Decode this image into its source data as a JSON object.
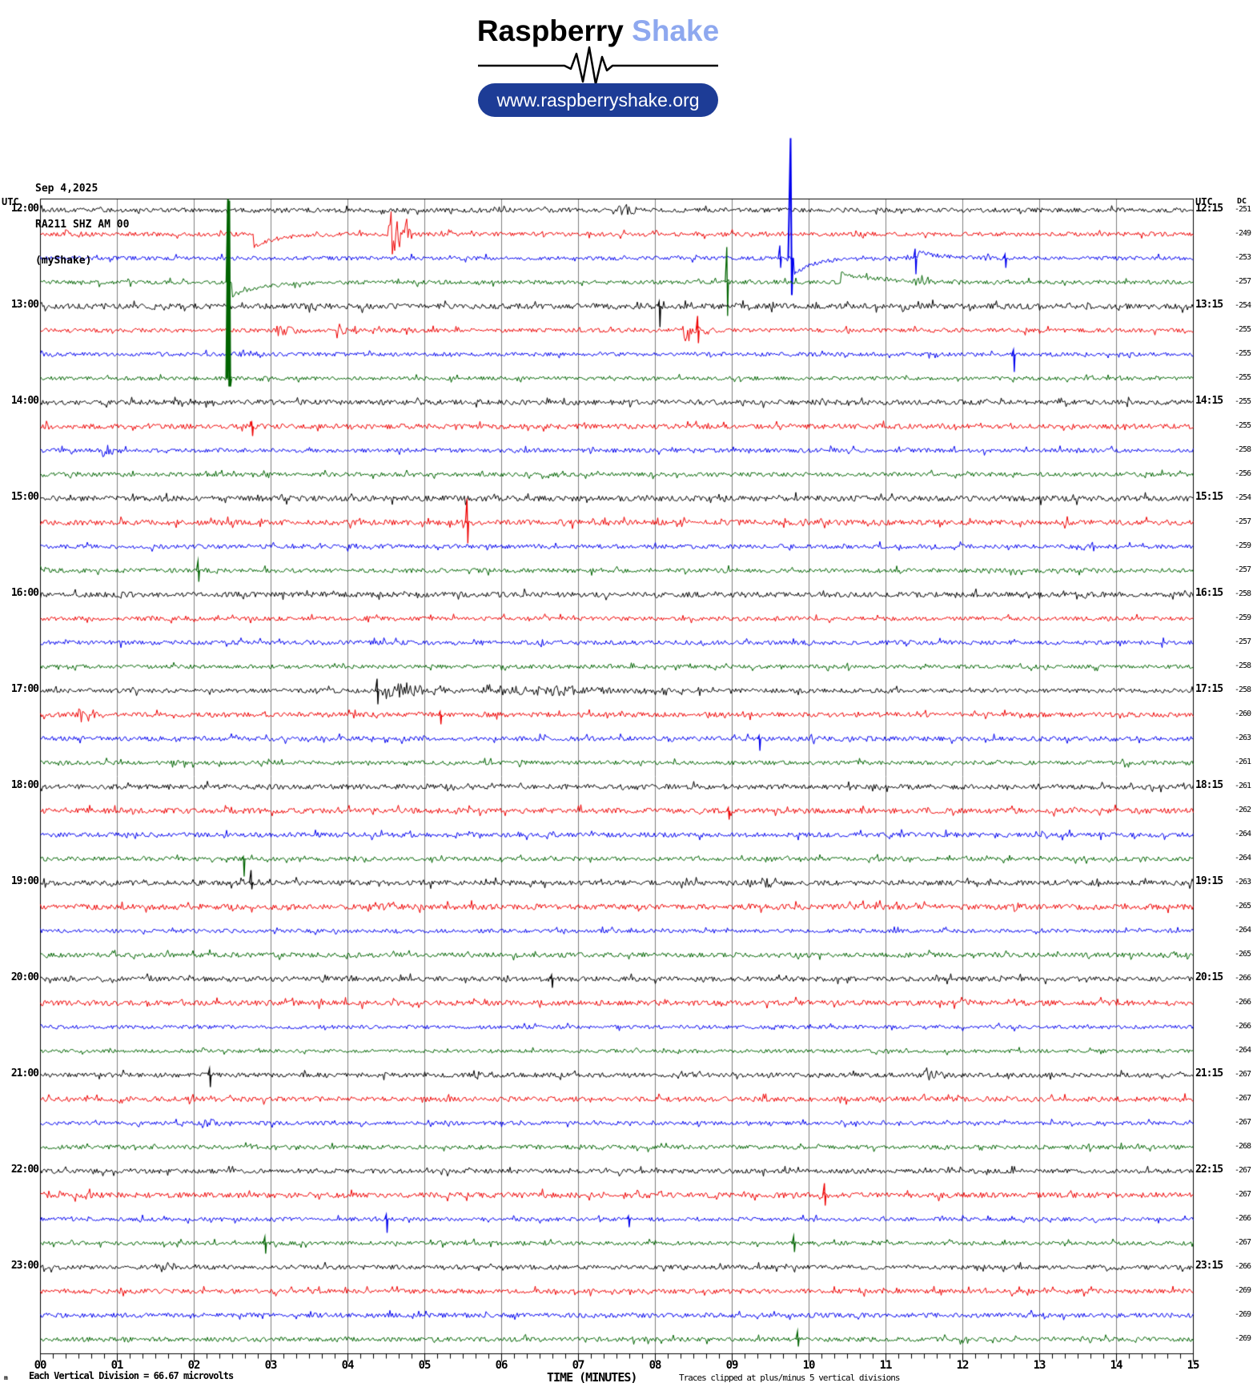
{
  "header": {
    "logo_black": "Raspberry",
    "logo_blue": "Shake",
    "url": "www.raspberryshake.org"
  },
  "station": {
    "date": "Sep 4,2025",
    "id": "RA211 SHZ AM 00",
    "network": "(myShake)"
  },
  "axis": {
    "utc_left": "UTC",
    "utc_right": "UTC",
    "dc_header": "DC",
    "x_title": "TIME (MINUTES)",
    "clip_note": "Traces clipped at plus/minus 5 vertical divisions",
    "division_note": "Each Vertical Division =   66.67 microvolts",
    "corner_mark": "m",
    "x_ticks": [
      "00",
      "01",
      "02",
      "03",
      "04",
      "05",
      "06",
      "07",
      "08",
      "09",
      "10",
      "11",
      "12",
      "13",
      "14",
      "15"
    ]
  },
  "chart_data": {
    "type": "line",
    "subtype": "helicorder-seismogram",
    "x_range_minutes": [
      0,
      15
    ],
    "minutes_per_row": 15,
    "minor_tick_seconds": 10,
    "grid": true,
    "grid_color": "#7f7f7f",
    "colors": {
      "black": "#000000",
      "red": "#ee0000",
      "blue": "#0000ee",
      "green": "#006400"
    },
    "rows": [
      {
        "color": "black",
        "dc": -251,
        "left": "12:00",
        "right": "12:15"
      },
      {
        "color": "red",
        "dc": -249
      },
      {
        "color": "blue",
        "dc": -253
      },
      {
        "color": "green",
        "dc": -257
      },
      {
        "color": "black",
        "dc": -254,
        "left": "13:00",
        "right": "13:15"
      },
      {
        "color": "red",
        "dc": -255
      },
      {
        "color": "blue",
        "dc": -255
      },
      {
        "color": "green",
        "dc": -255
      },
      {
        "color": "black",
        "dc": -255,
        "left": "14:00",
        "right": "14:15"
      },
      {
        "color": "red",
        "dc": -255
      },
      {
        "color": "blue",
        "dc": -258
      },
      {
        "color": "green",
        "dc": -256
      },
      {
        "color": "black",
        "dc": -254,
        "left": "15:00",
        "right": "15:15"
      },
      {
        "color": "red",
        "dc": -257
      },
      {
        "color": "blue",
        "dc": -259
      },
      {
        "color": "green",
        "dc": -257
      },
      {
        "color": "black",
        "dc": -258,
        "left": "16:00",
        "right": "16:15"
      },
      {
        "color": "red",
        "dc": -259
      },
      {
        "color": "blue",
        "dc": -257
      },
      {
        "color": "green",
        "dc": -258
      },
      {
        "color": "black",
        "dc": -258,
        "left": "17:00",
        "right": "17:15"
      },
      {
        "color": "red",
        "dc": -260
      },
      {
        "color": "blue",
        "dc": -263
      },
      {
        "color": "green",
        "dc": -261
      },
      {
        "color": "black",
        "dc": -261,
        "left": "18:00",
        "right": "18:15"
      },
      {
        "color": "red",
        "dc": -262
      },
      {
        "color": "blue",
        "dc": -264
      },
      {
        "color": "green",
        "dc": -264
      },
      {
        "color": "black",
        "dc": -263,
        "left": "19:00",
        "right": "19:15"
      },
      {
        "color": "red",
        "dc": -265
      },
      {
        "color": "blue",
        "dc": -264
      },
      {
        "color": "green",
        "dc": -265
      },
      {
        "color": "black",
        "dc": -266,
        "left": "20:00",
        "right": "20:15"
      },
      {
        "color": "red",
        "dc": -266
      },
      {
        "color": "blue",
        "dc": -266
      },
      {
        "color": "green",
        "dc": -264
      },
      {
        "color": "black",
        "dc": -267,
        "left": "21:00",
        "right": "21:15"
      },
      {
        "color": "red",
        "dc": -267
      },
      {
        "color": "blue",
        "dc": -267
      },
      {
        "color": "green",
        "dc": -268
      },
      {
        "color": "black",
        "dc": -267,
        "left": "22:00",
        "right": "22:15"
      },
      {
        "color": "red",
        "dc": -267
      },
      {
        "color": "blue",
        "dc": -266
      },
      {
        "color": "green",
        "dc": -267
      },
      {
        "color": "black",
        "dc": -266,
        "left": "23:00",
        "right": "23:15"
      },
      {
        "color": "red",
        "dc": -269
      },
      {
        "color": "blue",
        "dc": -269
      },
      {
        "color": "green",
        "dc": -269
      }
    ],
    "events": [
      {
        "row": 0,
        "kind": "burst",
        "min": 7.5,
        "amp": 6,
        "dur": 0.6
      },
      {
        "row": 1,
        "kind": "burst",
        "min": 0.3,
        "amp": 8,
        "dur": 0.4
      },
      {
        "row": 1,
        "kind": "step",
        "min": 2.77,
        "amp": -16,
        "dur": 0.3
      },
      {
        "row": 1,
        "kind": "burst",
        "min": 4.52,
        "amp": 36,
        "dur": 0.25
      },
      {
        "row": 1,
        "kind": "burst",
        "min": 4.72,
        "amp": 22,
        "dur": 0.18
      },
      {
        "row": 2,
        "kind": "spike",
        "min": 9.62,
        "up": 16,
        "down": 12,
        "w": 2
      },
      {
        "row": 2,
        "kind": "spike",
        "min": 9.76,
        "up": 150,
        "down": 46,
        "w": 3,
        "lw": 2
      },
      {
        "row": 2,
        "kind": "step",
        "min": 9.8,
        "amp": -20,
        "dur": 0.25
      },
      {
        "row": 2,
        "kind": "spike",
        "min": 11.38,
        "up": 12,
        "down": 20,
        "w": 2
      },
      {
        "row": 2,
        "kind": "step",
        "min": 11.42,
        "amp": 8,
        "dur": 0.3
      },
      {
        "row": 2,
        "kind": "spike",
        "min": 12.55,
        "up": 5,
        "down": 12,
        "w": 2
      },
      {
        "row": 3,
        "kind": "spike",
        "min": 2.44,
        "up": 104,
        "down": 6,
        "w": 2,
        "lw": 2
      },
      {
        "row": 3,
        "kind": "step",
        "min": 2.5,
        "amp": -16,
        "dur": 0.4
      },
      {
        "row": 3,
        "kind": "spike",
        "min": 8.93,
        "up": 44,
        "down": 42,
        "w": 2
      },
      {
        "row": 3,
        "kind": "step",
        "min": 10.42,
        "amp": 12,
        "dur": 0.45
      },
      {
        "row": 3,
        "kind": "burst",
        "min": 11.35,
        "amp": 7,
        "dur": 0.45
      },
      {
        "row": 4,
        "kind": "spike",
        "min": 8.05,
        "up": 6,
        "down": 26,
        "w": 2
      },
      {
        "row": 4,
        "kind": "burst",
        "min": 11.2,
        "amp": 5,
        "dur": 0.4
      },
      {
        "row": 5,
        "kind": "burst",
        "min": 3.05,
        "amp": 9,
        "dur": 0.5
      },
      {
        "row": 5,
        "kind": "burst",
        "min": 3.85,
        "amp": 12,
        "dur": 0.35
      },
      {
        "row": 5,
        "kind": "burst",
        "min": 8.35,
        "amp": 13,
        "dur": 0.5
      },
      {
        "row": 5,
        "kind": "spike",
        "min": 8.55,
        "up": 18,
        "down": 16,
        "w": 2
      },
      {
        "row": 6,
        "kind": "burst",
        "min": 2.5,
        "amp": 6,
        "dur": 0.4
      },
      {
        "row": 6,
        "kind": "spike",
        "min": 12.66,
        "up": 6,
        "down": 22,
        "w": 2
      },
      {
        "row": 7,
        "kind": "spike",
        "min": 2.45,
        "up": 222,
        "down": 10,
        "w": 2.5,
        "lw": 3.5
      },
      {
        "row": 9,
        "kind": "spike",
        "min": 2.75,
        "up": 5,
        "down": 12,
        "w": 2
      },
      {
        "row": 10,
        "kind": "burst",
        "min": 0.8,
        "amp": 9,
        "dur": 0.3
      },
      {
        "row": 13,
        "kind": "spike",
        "min": 5.55,
        "up": 30,
        "down": 26,
        "w": 2
      },
      {
        "row": 15,
        "kind": "spike",
        "min": 2.05,
        "up": 12,
        "down": 14,
        "w": 2
      },
      {
        "row": 20,
        "kind": "spike",
        "min": 4.38,
        "up": 15,
        "down": 17,
        "w": 2
      },
      {
        "row": 20,
        "kind": "burst",
        "min": 4.45,
        "amp": 12,
        "dur": 1.3
      },
      {
        "row": 20,
        "kind": "burst",
        "min": 5.75,
        "amp": 7,
        "dur": 2.8
      },
      {
        "row": 21,
        "kind": "burst",
        "min": 0.5,
        "amp": 9,
        "dur": 0.5
      },
      {
        "row": 21,
        "kind": "spike",
        "min": 5.2,
        "up": 4,
        "down": 12,
        "w": 2
      },
      {
        "row": 22,
        "kind": "spike",
        "min": 9.35,
        "up": 4,
        "down": 15,
        "w": 2
      },
      {
        "row": 25,
        "kind": "spike",
        "min": 8.95,
        "up": 4,
        "down": 11,
        "w": 2
      },
      {
        "row": 27,
        "kind": "spike",
        "min": 2.64,
        "up": 3,
        "down": 22,
        "w": 2
      },
      {
        "row": 28,
        "kind": "spike",
        "min": 2.74,
        "up": 16,
        "down": 8,
        "w": 2
      },
      {
        "row": 28,
        "kind": "burst",
        "min": 9.2,
        "amp": 6,
        "dur": 0.6
      },
      {
        "row": 32,
        "kind": "spike",
        "min": 6.65,
        "up": 5,
        "down": 11,
        "w": 2
      },
      {
        "row": 36,
        "kind": "spike",
        "min": 2.2,
        "up": 8,
        "down": 15,
        "w": 2
      },
      {
        "row": 36,
        "kind": "burst",
        "min": 11.5,
        "amp": 9,
        "dur": 0.35
      },
      {
        "row": 38,
        "kind": "burst",
        "min": 2.1,
        "amp": 8,
        "dur": 0.35
      },
      {
        "row": 41,
        "kind": "spike",
        "min": 10.2,
        "up": 15,
        "down": 13,
        "w": 2
      },
      {
        "row": 42,
        "kind": "spike",
        "min": 4.5,
        "up": 6,
        "down": 17,
        "w": 2
      },
      {
        "row": 42,
        "kind": "spike",
        "min": 7.65,
        "up": 4,
        "down": 10,
        "w": 2
      },
      {
        "row": 43,
        "kind": "spike",
        "min": 2.92,
        "up": 8,
        "down": 13,
        "w": 2
      },
      {
        "row": 43,
        "kind": "spike",
        "min": 9.8,
        "up": 9,
        "down": 11,
        "w": 2
      },
      {
        "row": 44,
        "kind": "burst",
        "min": 1.5,
        "amp": 6,
        "dur": 0.8
      },
      {
        "row": 47,
        "kind": "spike",
        "min": 9.85,
        "up": 10,
        "down": 9,
        "w": 2
      }
    ]
  }
}
